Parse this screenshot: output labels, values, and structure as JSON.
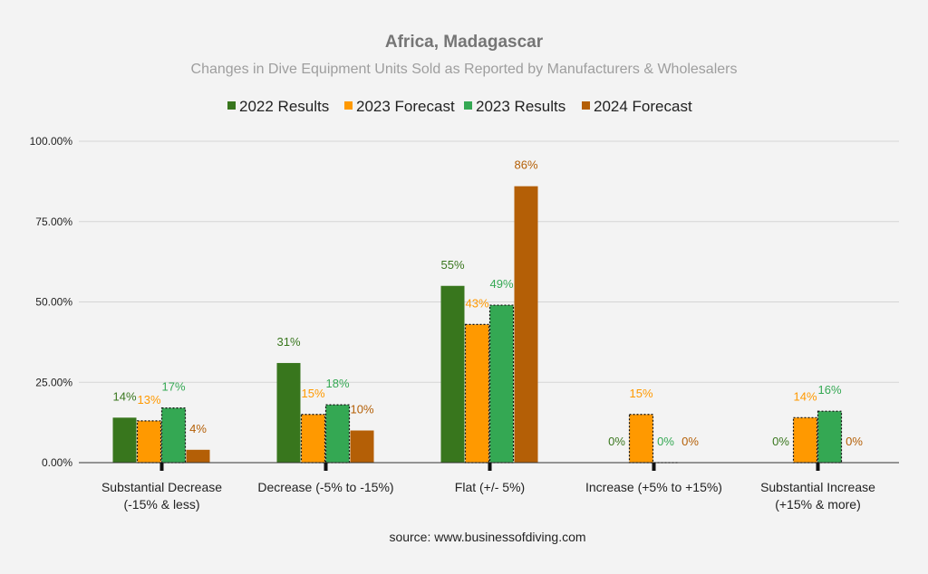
{
  "chart_data": {
    "type": "bar",
    "title": "Africa, Madagascar",
    "subtitle": "Changes in Dive Equipment Units Sold as Reported by Manufacturers & Wholesalers",
    "source": "source: www.businessofdiving.com",
    "legend_position": "top",
    "ylim": [
      0,
      100
    ],
    "yticks": [
      "0.00%",
      "25.00%",
      "50.00%",
      "75.00%",
      "100.00%"
    ],
    "ytick_values": [
      0,
      25,
      50,
      75,
      100
    ],
    "categories": [
      [
        "Substantial Decrease",
        "(-15% & less)"
      ],
      [
        "Decrease (-5% to -15%)"
      ],
      [
        "Flat (+/- 5%)"
      ],
      [
        "Increase (+5% to +15%)"
      ],
      [
        "Substantial Increase",
        "(+15% & more)"
      ]
    ],
    "series": [
      {
        "name": "2022 Results",
        "color": "#38761d",
        "dashed": false,
        "values": [
          14,
          31,
          55,
          0,
          0
        ],
        "labels": [
          "14%",
          "31%",
          "55%",
          "0%",
          "0%"
        ]
      },
      {
        "name": "2023 Forecast",
        "color": "#ff9900",
        "dashed": true,
        "values": [
          13,
          15,
          43,
          15,
          14
        ],
        "labels": [
          "13%",
          "15%",
          "43%",
          "15%",
          "14%"
        ]
      },
      {
        "name": "2023 Results",
        "color": "#34a853",
        "dashed": true,
        "values": [
          17,
          18,
          49,
          0,
          16
        ],
        "labels": [
          "17%",
          "18%",
          "49%",
          "0%",
          "16%"
        ]
      },
      {
        "name": "2024 Forecast",
        "color": "#b45f06",
        "dashed": false,
        "values": [
          4,
          10,
          86,
          0,
          0
        ],
        "labels": [
          "4%",
          "10%",
          "86%",
          "0%",
          "0%"
        ]
      }
    ]
  }
}
